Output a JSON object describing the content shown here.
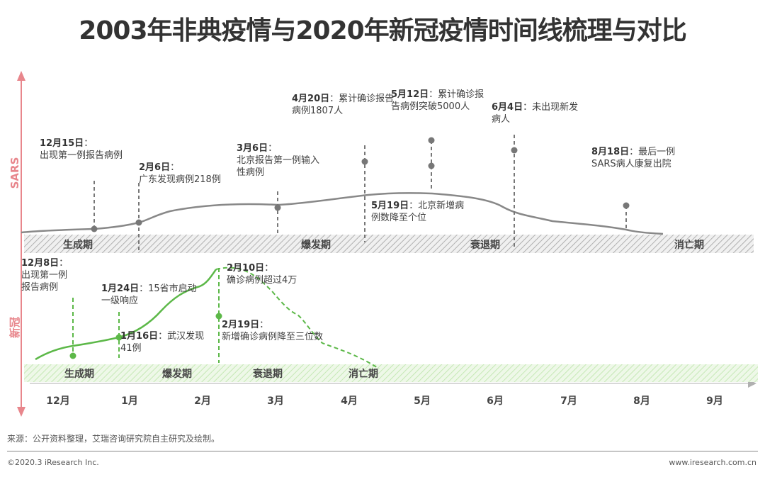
{
  "title": "2003年非典疫情与2020年新冠疫情时间线梳理与对比",
  "source": "来源：公开资料整理，艾瑞咨询研究院自主研究及绘制。",
  "copyright": "©2020.3 iResearch Inc.",
  "site": "www.iresearch.com.cn",
  "colors": {
    "sars": "#808080",
    "covid": "#5CB848",
    "axis": "#E8868C"
  },
  "chart_data": {
    "type": "line",
    "x_axis": {
      "ticks": [
        "12月",
        "1月",
        "2月",
        "3月",
        "4月",
        "5月",
        "6月",
        "7月",
        "8月",
        "9月"
      ]
    },
    "sars": {
      "axis_label": "SARS",
      "phases": [
        "生成期",
        "爆发期",
        "衰退期",
        "消亡期"
      ],
      "events": [
        {
          "date": "12月15日",
          "text": "出现第一例报告病例",
          "label": "12月15日：\n出现第一例报告病例"
        },
        {
          "date": "2月6日",
          "text": "广东发现病例218例",
          "label": "2月6日：\n广东发现病例218例"
        },
        {
          "date": "3月6日",
          "text": "北京报告第一例输入性病例",
          "label": "3月6日：\n北京报告第一例输入\n性病例"
        },
        {
          "date": "4月20日",
          "text": "累计确诊报告病例1807人",
          "label": "4月20日：累计确诊报告\n病例1807人"
        },
        {
          "date": "5月12日",
          "text": "累计确诊报告病例突破5000人",
          "label": "5月12日：累计确诊报\n告病例突破5000人"
        },
        {
          "date": "5月19日",
          "text": "北京新增病例数降至个位",
          "label": "5月19日：北京新增病\n例数降至个位"
        },
        {
          "date": "6月4日",
          "text": "未出现新发病人",
          "label": "6月4日：未出现新发\n病人"
        },
        {
          "date": "8月18日",
          "text": "最后一例SARS病人康复出院",
          "label": "8月18日：最后一例\nSARS病人康复出院"
        }
      ]
    },
    "covid": {
      "axis_label": "新冠",
      "phases": [
        "生成期",
        "爆发期",
        "衰退期",
        "消亡期"
      ],
      "events": [
        {
          "date": "12月8日",
          "text": "出现第一例报告病例",
          "label": "12月8日：\n出现第一例\n报告病例"
        },
        {
          "date": "1月16日",
          "text": "武汉发现41例",
          "label": "1月16日：武汉发现\n41例"
        },
        {
          "date": "1月24日",
          "text": "15省市启动一级响应",
          "label": "1月24日：15省市启动\n一级响应"
        },
        {
          "date": "2月10日",
          "text": "确诊病例超过4万",
          "label": "2月10日：\n确诊病例超过4万"
        },
        {
          "date": "2月19日",
          "text": "新增确诊病例降至三位数",
          "label": "2月19日：\n新增确诊病例降至三位数"
        }
      ]
    }
  }
}
